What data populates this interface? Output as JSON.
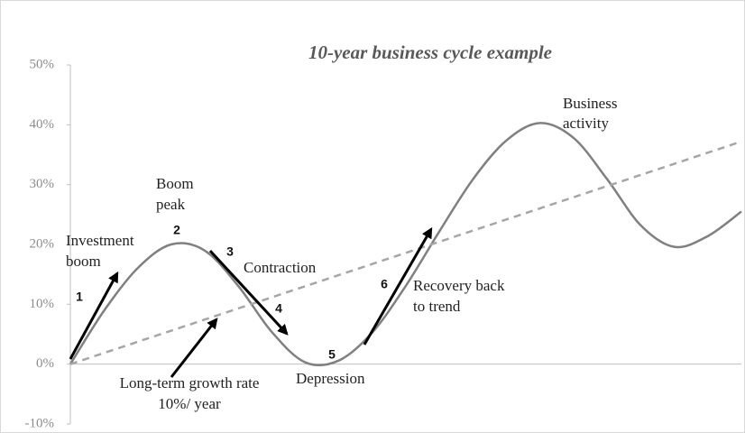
{
  "chart_data": {
    "type": "line",
    "title": "10-year business cycle example",
    "xlim": [
      0,
      10
    ],
    "ylim": [
      -10,
      50
    ],
    "yticks": [
      {
        "value": -10,
        "label": "-10%"
      },
      {
        "value": 0,
        "label": "0%"
      },
      {
        "value": 10,
        "label": "10%"
      },
      {
        "value": 20,
        "label": "20%"
      },
      {
        "value": 30,
        "label": "30%"
      },
      {
        "value": 40,
        "label": "40%"
      },
      {
        "value": 50,
        "label": "50%"
      }
    ],
    "series": [
      {
        "color": "#808080",
        "dashed": false,
        "x": [
          0,
          0.5,
          1,
          1.5,
          2,
          2.5,
          3,
          3.5,
          4,
          4.5,
          5,
          5.5,
          6,
          6.5,
          7,
          7.5,
          8,
          8.5,
          9,
          9.5,
          10
        ],
        "values": [
          0,
          8.9,
          16.0,
          20.0,
          19.0,
          13.1,
          5.4,
          0.3,
          0.6,
          5.3,
          13.1,
          22.2,
          30.9,
          37.4,
          40.3,
          37.8,
          30.9,
          23.2,
          19.6,
          21.4,
          25.5
        ]
      },
      {
        "color": "#a6a6a6",
        "dashed": true,
        "x": [
          0,
          10
        ],
        "values": [
          0,
          37.2
        ]
      }
    ],
    "annotations": [
      "Business",
      "activity",
      "Boom",
      "peak",
      "Investment",
      "boom",
      "Contraction",
      "Recovery back",
      "to trend",
      "Depression",
      "Long-term growth rate",
      "10%/ year",
      "1",
      "2",
      "3",
      "4",
      "5",
      "6"
    ]
  }
}
